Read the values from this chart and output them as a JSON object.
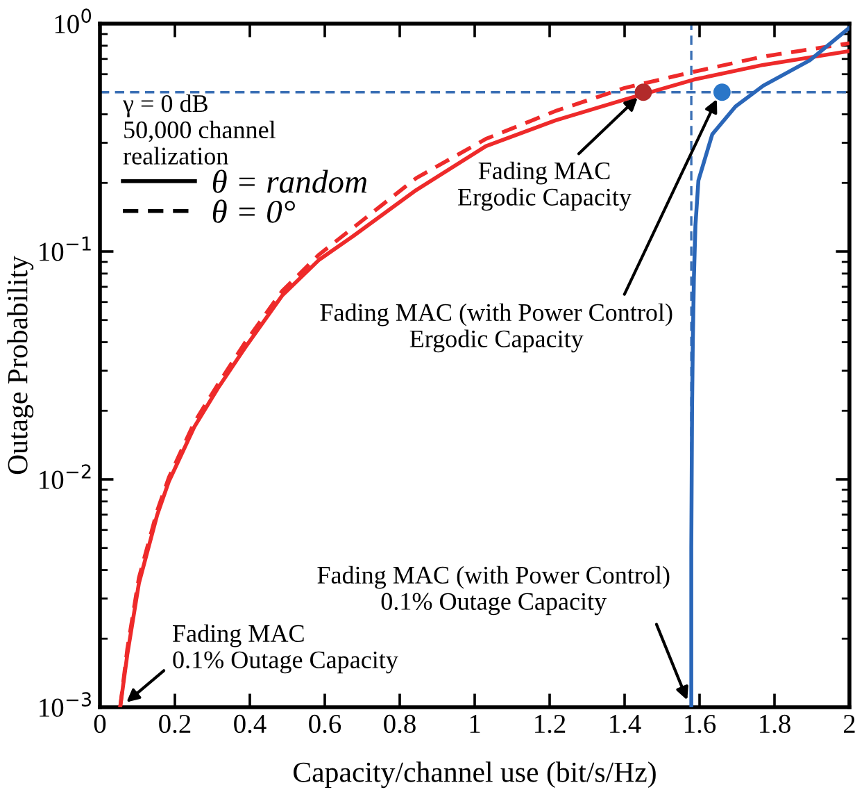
{
  "chart_data": {
    "type": "line",
    "xlabel": "Capacity/channel use (bit/s/Hz)",
    "ylabel": "Outage Probability",
    "log": "y",
    "xlim": [
      0,
      2
    ],
    "ylim": [
      0.001,
      1
    ],
    "xticks": [
      0,
      0.2,
      0.4,
      0.6,
      0.8,
      1,
      1.2,
      1.4,
      1.6,
      1.8,
      2
    ],
    "yticks": [
      {
        "value": 0.001,
        "label": "10$^{−3}$"
      },
      {
        "value": 0.01,
        "label": "10$^{−2}$"
      },
      {
        "value": 0.1,
        "label": "10$^{−1}$"
      },
      {
        "value": 1,
        "label": "10$^{0}$"
      }
    ],
    "grid": false,
    "legend": "top left",
    "legend_title": "γ = 0 dB\n50,000 channel\nrealization",
    "marker": "none",
    "series": [
      {
        "name": "θ = random",
        "color": "#ee2a2a",
        "line_style": "solid",
        "x": [
          0.054,
          0.073,
          0.104,
          0.153,
          0.184,
          0.252,
          0.314,
          0.388,
          0.486,
          0.585,
          0.67,
          0.844,
          1.03,
          1.215,
          1.4,
          1.585,
          1.77,
          2.0
        ],
        "values": [
          0.001,
          0.0017,
          0.0035,
          0.007,
          0.0098,
          0.017,
          0.025,
          0.038,
          0.064,
          0.092,
          0.115,
          0.186,
          0.29,
          0.376,
          0.464,
          0.568,
          0.659,
          0.758
        ]
      },
      {
        "name": "θ = 0°",
        "color": "#ee2a2a",
        "line_style": "dashed",
        "x": [
          0.054,
          0.073,
          0.104,
          0.153,
          0.184,
          0.252,
          0.314,
          0.388,
          0.486,
          0.585,
          0.67,
          0.844,
          1.03,
          1.215,
          1.4,
          1.585,
          1.77,
          2.0
        ],
        "values": [
          0.001,
          0.0018,
          0.0037,
          0.0073,
          0.0102,
          0.0178,
          0.026,
          0.04,
          0.067,
          0.097,
          0.125,
          0.21,
          0.312,
          0.413,
          0.522,
          0.615,
          0.717,
          0.82
        ]
      },
      {
        "color": "#2a66b8",
        "line_style": "solid",
        "x": [
          1.578,
          1.578,
          1.579,
          1.58,
          1.582,
          1.585,
          1.589,
          1.597,
          1.634,
          1.696,
          1.77,
          1.894,
          2.0
        ],
        "values": [
          0.001,
          0.005,
          0.01,
          0.02,
          0.04,
          0.077,
          0.13,
          0.205,
          0.327,
          0.433,
          0.534,
          0.69,
          0.96
        ]
      },
      {
        "type": "scatter",
        "color": "#b22a2a",
        "marker": "circle",
        "x": [
          1.45
        ],
        "values": [
          0.5
        ]
      },
      {
        "type": "scatter",
        "color": "#2a76c8",
        "marker": "circle",
        "x": [
          1.66
        ],
        "values": [
          0.5
        ]
      }
    ],
    "ref_lines": [
      {
        "axis": "y",
        "value": 0.5,
        "color": "#3a6fb5",
        "line_style": "dashed"
      },
      {
        "axis": "x",
        "value": 1.578,
        "color": "#3a6fb5",
        "line_style": "dashed"
      }
    ],
    "annotations": [
      {
        "text": "Fading MAC\nErgodic Capacity",
        "x": 1.45,
        "y": 0.5
      },
      {
        "text": "Fading MAC (with Power Control)\nErgodic Capacity",
        "x": 1.655,
        "y": 0.5
      },
      {
        "text": "Fading MAC (with Power Control)\n0.1% Outage Capacity",
        "x": 1.575,
        "y": 0.001
      },
      {
        "text": "Fading MAC\n0.1% Outage Capacity",
        "x": 0.055,
        "y": 0.001
      }
    ]
  }
}
